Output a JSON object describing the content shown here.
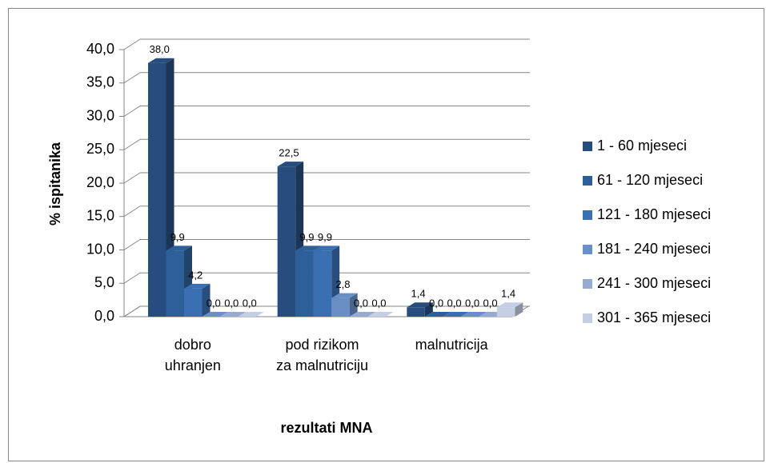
{
  "chart_data": {
    "type": "bar3d",
    "categories": [
      "dobro uhranjen",
      "pod rizikom za malnutriciju",
      "malnutricija"
    ],
    "series": [
      {
        "name": "1 - 60 mjeseci",
        "color": "#264d7e",
        "values": [
          38.0,
          22.5,
          1.4
        ],
        "value_labels": [
          "38,0",
          "22,5",
          "1,4"
        ]
      },
      {
        "name": "61 - 120 mjeseci",
        "color": "#2f5f98",
        "values": [
          9.9,
          9.9,
          0.0
        ],
        "value_labels": [
          "9,9",
          "9,9",
          "0,0"
        ]
      },
      {
        "name": "121 - 180 mjeseci",
        "color": "#3a70b2",
        "values": [
          4.2,
          9.9,
          0.0
        ],
        "value_labels": [
          "4,2",
          "9,9",
          "0,0"
        ]
      },
      {
        "name": "181 - 240 mjeseci",
        "color": "#6a8fc6",
        "values": [
          0.0,
          2.8,
          0.0
        ],
        "value_labels": [
          "0,0",
          "2,8",
          "0,0"
        ]
      },
      {
        "name": "241 - 300 mjeseci",
        "color": "#95abd2",
        "values": [
          0.0,
          0.0,
          0.0
        ],
        "value_labels": [
          "0,0",
          "0,0",
          "0,0"
        ]
      },
      {
        "name": "301 - 365 mjeseci",
        "color": "#c4cee5",
        "values": [
          0.0,
          0.0,
          1.4
        ],
        "value_labels": [
          "0,0",
          "0,0",
          "1,4"
        ]
      }
    ],
    "ylim": [
      0,
      40
    ],
    "yticks": [
      {
        "value": 0,
        "label": "0,0"
      },
      {
        "value": 5,
        "label": "5,0"
      },
      {
        "value": 10,
        "label": "10,0"
      },
      {
        "value": 15,
        "label": "15,0"
      },
      {
        "value": 20,
        "label": "20,0"
      },
      {
        "value": 25,
        "label": "25,0"
      },
      {
        "value": 30,
        "label": "30,0"
      },
      {
        "value": 35,
        "label": "35,0"
      },
      {
        "value": 40,
        "label": "40,0"
      }
    ],
    "y_label": "% ispitanika",
    "x_label": "rezultati MNA",
    "grid": true
  }
}
